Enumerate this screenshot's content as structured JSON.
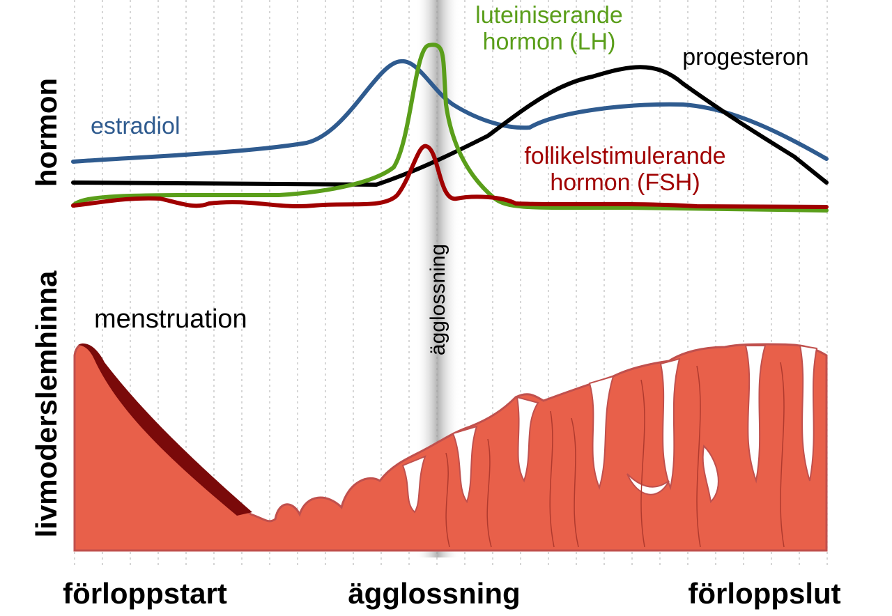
{
  "axis_labels": {
    "top": "hormon",
    "bottom": "livmoderslemhinna"
  },
  "hormones": {
    "estradiol": "estradiol",
    "lh": [
      "luteiniserande",
      "hormon (LH)"
    ],
    "fsh": [
      "follikelstimulerande",
      "hormon (FSH)"
    ],
    "progesterone": "progesteron"
  },
  "menstruation": "menstruation",
  "ovulation_marker": "ägglossning",
  "timeline": [
    "förloppstart",
    "ägglossning",
    "förloppslut"
  ]
}
